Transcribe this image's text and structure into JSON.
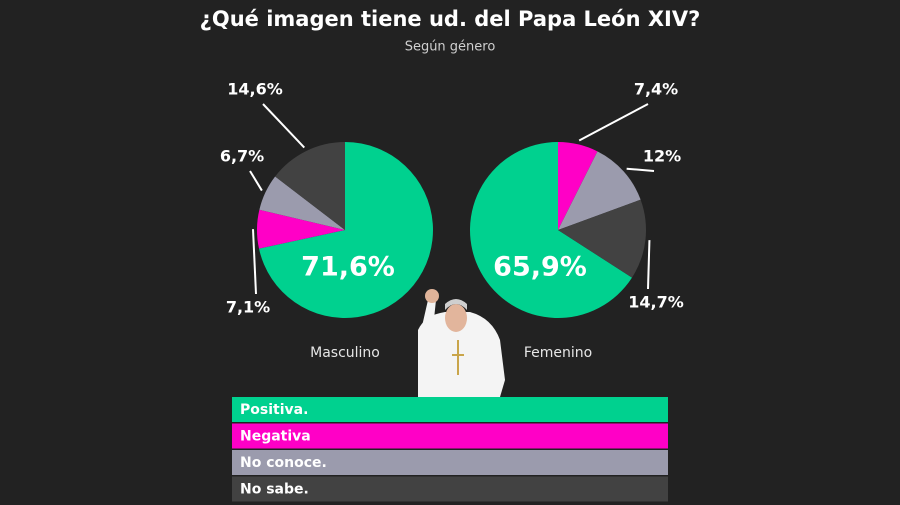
{
  "title": "¿Qué imagen tiene ud. del Papa León XIV?",
  "subtitle": "Según género",
  "categories": [
    "Positiva.",
    "Negativa",
    "No conoce.",
    "No sabe."
  ],
  "colors": [
    "#00d18f",
    "#ff00c6",
    "#9b9bad",
    "#424242"
  ],
  "chart_data": [
    {
      "type": "pie",
      "label": "Masculino",
      "values": [
        71.6,
        7.1,
        6.7,
        14.6
      ],
      "value_labels": [
        "71,6%",
        "7,1%",
        "6,7%",
        "14,6%"
      ],
      "first_slice": "starts-at-top"
    },
    {
      "type": "pie",
      "label": "Femenino",
      "values": [
        65.9,
        7.4,
        12,
        14.7
      ],
      "value_labels": [
        "65,9%",
        "7,4%",
        "12%",
        "14,7%"
      ],
      "first_slice": "ends-at-top"
    }
  ]
}
